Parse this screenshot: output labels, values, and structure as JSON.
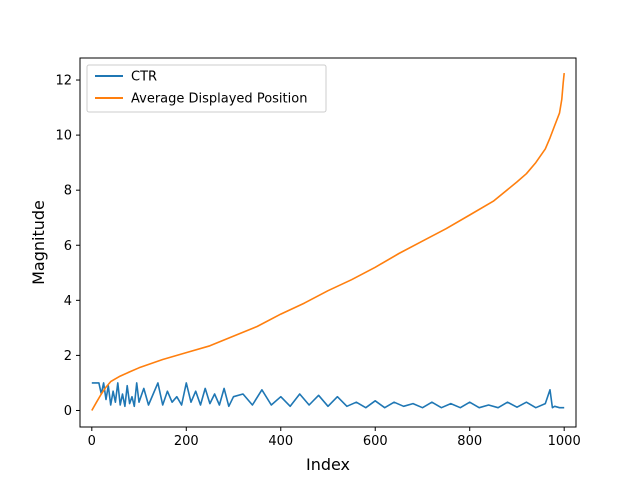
{
  "chart_data": {
    "type": "line",
    "title": "",
    "xlabel": "Index",
    "ylabel": "Magnitude",
    "xlim": [
      -25,
      1025
    ],
    "ylim": [
      -0.6,
      12.8
    ],
    "x_ticks": [
      0,
      200,
      400,
      600,
      800,
      1000
    ],
    "y_ticks": [
      0,
      2,
      4,
      6,
      8,
      10,
      12
    ],
    "grid": false,
    "legend_position": "top-left",
    "series": [
      {
        "name": "CTR",
        "color": "#1f77b4",
        "x": [
          0,
          5,
          10,
          15,
          20,
          25,
          30,
          35,
          40,
          45,
          50,
          55,
          60,
          65,
          70,
          75,
          80,
          85,
          90,
          95,
          100,
          110,
          120,
          130,
          140,
          150,
          160,
          170,
          180,
          190,
          200,
          210,
          220,
          230,
          240,
          250,
          260,
          270,
          280,
          290,
          300,
          320,
          340,
          360,
          380,
          400,
          420,
          440,
          460,
          480,
          500,
          520,
          540,
          560,
          580,
          600,
          620,
          640,
          660,
          680,
          700,
          720,
          740,
          760,
          780,
          800,
          820,
          840,
          860,
          880,
          900,
          920,
          940,
          960,
          970,
          975,
          980,
          990,
          1000
        ],
        "values": [
          1.0,
          1.0,
          1.0,
          1.0,
          0.6,
          1.0,
          0.4,
          0.9,
          0.2,
          0.7,
          0.3,
          1.0,
          0.2,
          0.6,
          0.15,
          0.9,
          0.25,
          0.5,
          0.15,
          1.0,
          0.3,
          0.8,
          0.2,
          0.6,
          1.0,
          0.2,
          0.7,
          0.3,
          0.5,
          0.2,
          1.0,
          0.3,
          0.7,
          0.2,
          0.8,
          0.25,
          0.6,
          0.2,
          0.8,
          0.15,
          0.5,
          0.6,
          0.2,
          0.75,
          0.2,
          0.5,
          0.15,
          0.6,
          0.2,
          0.55,
          0.15,
          0.5,
          0.15,
          0.3,
          0.1,
          0.35,
          0.1,
          0.3,
          0.15,
          0.25,
          0.1,
          0.3,
          0.1,
          0.25,
          0.1,
          0.3,
          0.1,
          0.2,
          0.1,
          0.3,
          0.12,
          0.3,
          0.1,
          0.25,
          0.75,
          0.1,
          0.15,
          0.1,
          0.1
        ]
      },
      {
        "name": "Average Displayed Position",
        "color": "#ff7f0e",
        "x": [
          0,
          10,
          20,
          30,
          40,
          50,
          60,
          80,
          100,
          150,
          200,
          250,
          300,
          350,
          400,
          450,
          500,
          550,
          600,
          650,
          700,
          750,
          800,
          850,
          900,
          920,
          940,
          960,
          970,
          980,
          990,
          995,
          998,
          1000
        ],
        "values": [
          0.0,
          0.3,
          0.6,
          0.85,
          1.05,
          1.15,
          1.25,
          1.4,
          1.55,
          1.85,
          2.1,
          2.35,
          2.7,
          3.05,
          3.5,
          3.9,
          4.35,
          4.75,
          5.2,
          5.7,
          6.15,
          6.6,
          7.1,
          7.6,
          8.3,
          8.6,
          9.0,
          9.5,
          9.9,
          10.35,
          10.8,
          11.3,
          11.9,
          12.25
        ]
      }
    ]
  }
}
